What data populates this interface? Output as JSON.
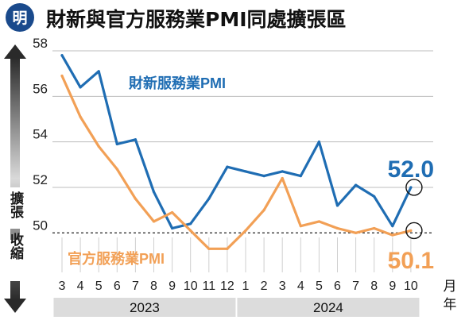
{
  "logo": {
    "text": "明"
  },
  "title": "財新與官方服務業PMI同處擴張區",
  "axis": {
    "expansion_label": "擴張",
    "contraction_label": "收縮",
    "unit_month": "月",
    "unit_year": "年"
  },
  "colors": {
    "caixin": "#1f6db3",
    "official": "#f2a056",
    "title_bar": "#1a4a8c",
    "year_band": "#dcdcdc",
    "arrow_top": "#2a2a2a",
    "arrow_bottom": "#d0d0d0"
  },
  "chart_data": {
    "type": "line",
    "x_tick_labels": [
      "3",
      "4",
      "5",
      "6",
      "7",
      "8",
      "9",
      "10",
      "11",
      "12",
      "1",
      "2",
      "3",
      "4",
      "5",
      "6",
      "7",
      "8",
      "9",
      "10"
    ],
    "year_groups": [
      {
        "label": "2023",
        "months": [
          "3",
          "4",
          "5",
          "6",
          "7",
          "8",
          "9",
          "10",
          "11",
          "12"
        ]
      },
      {
        "label": "2024",
        "months": [
          "1",
          "2",
          "3",
          "4",
          "5",
          "6",
          "7",
          "8",
          "9",
          "10"
        ]
      }
    ],
    "y_ticks": [
      50,
      52,
      54,
      56,
      58
    ],
    "ylim": [
      49.8,
      58
    ],
    "threshold": 50,
    "series": [
      {
        "name": "財新服務業PMI",
        "color_key": "caixin",
        "values": [
          57.8,
          56.4,
          57.1,
          53.9,
          54.1,
          51.8,
          50.2,
          50.4,
          51.5,
          52.9,
          52.7,
          52.5,
          52.7,
          52.5,
          54.0,
          51.2,
          52.1,
          51.6,
          50.3,
          52.0
        ],
        "end_label": "52.0"
      },
      {
        "name": "官方服務業PMI",
        "color_key": "official",
        "values": [
          56.9,
          55.1,
          53.8,
          52.8,
          51.5,
          50.5,
          50.9,
          50.1,
          49.3,
          49.3,
          50.1,
          51.0,
          52.4,
          50.3,
          50.5,
          50.2,
          50.0,
          50.2,
          49.9,
          50.1
        ],
        "end_label": "50.1"
      }
    ]
  }
}
